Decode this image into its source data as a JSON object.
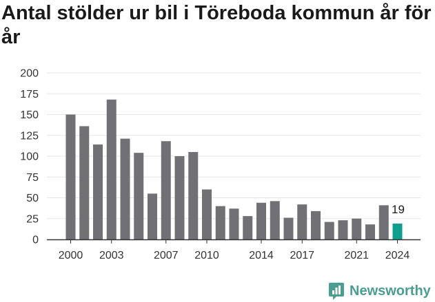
{
  "chart_data": {
    "type": "bar",
    "title": "Antal stölder ur bil i Töreboda kommun år för år",
    "xlabel": "",
    "ylabel": "",
    "categories": [
      "2000",
      "2001",
      "2002",
      "2003",
      "2004",
      "2005",
      "2006",
      "2007",
      "2008",
      "2009",
      "2010",
      "2011",
      "2012",
      "2013",
      "2014",
      "2015",
      "2016",
      "2017",
      "2018",
      "2019",
      "2020",
      "2021",
      "2022",
      "2023",
      "2024"
    ],
    "values": [
      150,
      136,
      114,
      168,
      121,
      104,
      55,
      118,
      100,
      105,
      60,
      40,
      37,
      28,
      44,
      46,
      26,
      42,
      34,
      21,
      23,
      25,
      18,
      41,
      19
    ],
    "x_tick_labels": [
      "2000",
      "2003",
      "2007",
      "2010",
      "2014",
      "2017",
      "2021",
      "2024"
    ],
    "y_ticks": [
      0,
      25,
      50,
      75,
      100,
      125,
      150,
      175,
      200
    ],
    "ylim": [
      0,
      200
    ],
    "grid": true,
    "highlight": {
      "category": "2024",
      "label": "19"
    },
    "colors": {
      "bar": "#717074",
      "highlight": "#0e9e8c",
      "grid": "#e6e6e6",
      "axis": "#333333"
    }
  },
  "brand": {
    "name": "Newsworthy",
    "icon": "newsworthy-logo-icon",
    "color": "#4a9e90"
  }
}
